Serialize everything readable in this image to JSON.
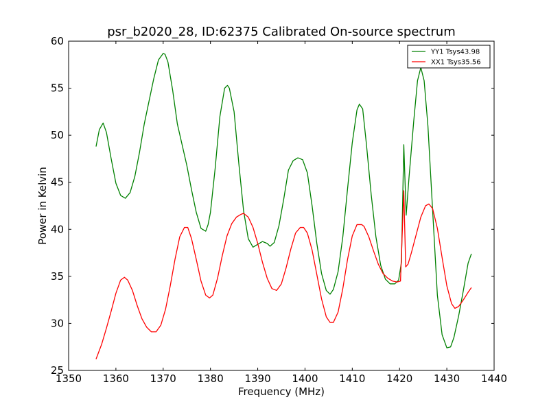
{
  "chart_data": {
    "type": "line",
    "title": "psr_b2020_28, ID:62375 Calibrated On-source spectrum",
    "xlabel": "Frequency (MHz)",
    "ylabel": "Power in Kelvin",
    "xlim": [
      1350,
      1440
    ],
    "ylim": [
      25,
      60
    ],
    "xticks": [
      1350,
      1360,
      1370,
      1380,
      1390,
      1400,
      1410,
      1420,
      1430,
      1440
    ],
    "yticks": [
      25,
      30,
      35,
      40,
      45,
      50,
      55,
      60
    ],
    "grid": false,
    "legend_position": "top-right",
    "series": [
      {
        "name": "YY1 Tsys43.98",
        "color": "#008000",
        "x": [
          1355.8,
          1356.5,
          1357.3,
          1358.0,
          1359.0,
          1360.0,
          1361.0,
          1362.0,
          1363.0,
          1364.0,
          1365.0,
          1366.0,
          1367.0,
          1368.0,
          1369.0,
          1370.0,
          1370.4,
          1371.0,
          1372.0,
          1373.0,
          1374.0,
          1375.0,
          1376.0,
          1377.0,
          1378.0,
          1379.0,
          1379.5,
          1380.0,
          1381.0,
          1382.0,
          1383.0,
          1383.6,
          1384.0,
          1385.0,
          1386.0,
          1387.0,
          1388.0,
          1389.0,
          1390.0,
          1391.0,
          1392.0,
          1392.6,
          1393.5,
          1394.5,
          1395.5,
          1396.5,
          1397.5,
          1398.5,
          1399.5,
          1400.5,
          1401.5,
          1402.5,
          1403.5,
          1404.5,
          1405.3,
          1406.0,
          1407.0,
          1408.0,
          1409.0,
          1410.0,
          1411.0,
          1411.5,
          1412.2,
          1413.0,
          1414.0,
          1415.0,
          1416.0,
          1417.0,
          1418.0,
          1419.0,
          1419.8,
          1420.4,
          1420.9,
          1421.4,
          1422.0,
          1423.0,
          1423.8,
          1424.5,
          1425.2,
          1426.0,
          1427.0,
          1428.0,
          1429.0,
          1430.0,
          1430.8,
          1431.5,
          1432.5,
          1433.5,
          1434.5,
          1435.2
        ],
        "values": [
          48.8,
          50.6,
          51.3,
          50.3,
          47.5,
          44.9,
          43.6,
          43.3,
          43.9,
          45.6,
          48.2,
          51.2,
          53.6,
          56.0,
          58.0,
          58.7,
          58.6,
          57.8,
          54.8,
          51.2,
          49.0,
          46.8,
          44.2,
          41.8,
          40.1,
          39.8,
          40.5,
          41.8,
          46.5,
          52.0,
          55.0,
          55.3,
          55.0,
          52.5,
          47.0,
          42.0,
          39.0,
          38.1,
          38.4,
          38.7,
          38.5,
          38.2,
          38.6,
          40.4,
          43.2,
          46.3,
          47.3,
          47.6,
          47.4,
          46.0,
          42.5,
          38.5,
          35.3,
          33.5,
          33.1,
          33.6,
          35.5,
          39.2,
          44.3,
          49.2,
          52.7,
          53.3,
          52.8,
          49.0,
          43.7,
          39.2,
          36.2,
          34.7,
          34.2,
          34.2,
          34.6,
          36.5,
          49.0,
          41.5,
          45.5,
          51.5,
          55.8,
          57.2,
          55.8,
          51.0,
          42.0,
          33.0,
          28.8,
          27.4,
          27.5,
          28.5,
          30.8,
          33.5,
          36.4,
          37.4
        ]
      },
      {
        "name": "XX1 Tsys35.56",
        "color": "#ff0000",
        "x": [
          1355.8,
          1357.0,
          1358.0,
          1359.0,
          1360.0,
          1361.0,
          1361.8,
          1362.5,
          1363.5,
          1364.5,
          1365.5,
          1366.5,
          1367.5,
          1368.5,
          1369.5,
          1370.5,
          1371.5,
          1372.5,
          1373.5,
          1374.5,
          1375.2,
          1376.0,
          1377.0,
          1378.0,
          1379.0,
          1379.8,
          1380.5,
          1381.5,
          1382.5,
          1383.5,
          1384.5,
          1385.5,
          1386.5,
          1387.0,
          1388.0,
          1389.0,
          1390.0,
          1391.0,
          1392.0,
          1393.0,
          1394.0,
          1395.0,
          1396.0,
          1397.0,
          1398.0,
          1399.0,
          1399.7,
          1400.5,
          1401.5,
          1402.5,
          1403.5,
          1404.5,
          1405.3,
          1406.0,
          1407.0,
          1408.0,
          1409.0,
          1410.0,
          1411.0,
          1412.0,
          1412.5,
          1413.5,
          1414.5,
          1415.5,
          1416.5,
          1417.5,
          1418.5,
          1419.5,
          1420.2,
          1420.9,
          1421.3,
          1421.8,
          1422.5,
          1423.5,
          1424.5,
          1425.5,
          1426.2,
          1427.0,
          1428.0,
          1429.0,
          1430.0,
          1431.0,
          1431.7,
          1432.5,
          1433.5,
          1434.5,
          1435.2
        ],
        "values": [
          26.2,
          27.8,
          29.5,
          31.3,
          33.2,
          34.6,
          34.9,
          34.6,
          33.5,
          31.9,
          30.5,
          29.6,
          29.1,
          29.1,
          29.8,
          31.5,
          34.0,
          36.8,
          39.2,
          40.2,
          40.2,
          39.0,
          36.8,
          34.5,
          33.0,
          32.7,
          33.0,
          34.8,
          37.2,
          39.3,
          40.6,
          41.3,
          41.6,
          41.7,
          41.3,
          40.2,
          38.5,
          36.5,
          34.8,
          33.7,
          33.5,
          34.2,
          35.9,
          37.9,
          39.6,
          40.2,
          40.2,
          39.6,
          37.8,
          35.2,
          32.6,
          30.7,
          30.1,
          30.1,
          31.2,
          33.7,
          36.8,
          39.3,
          40.5,
          40.5,
          40.3,
          39.2,
          37.7,
          36.3,
          35.3,
          34.8,
          34.5,
          34.4,
          34.5,
          44.1,
          36.0,
          36.3,
          37.5,
          39.4,
          41.3,
          42.5,
          42.7,
          42.2,
          40.1,
          37.0,
          34.0,
          32.1,
          31.6,
          31.8,
          32.5,
          33.3,
          33.8
        ]
      }
    ]
  }
}
